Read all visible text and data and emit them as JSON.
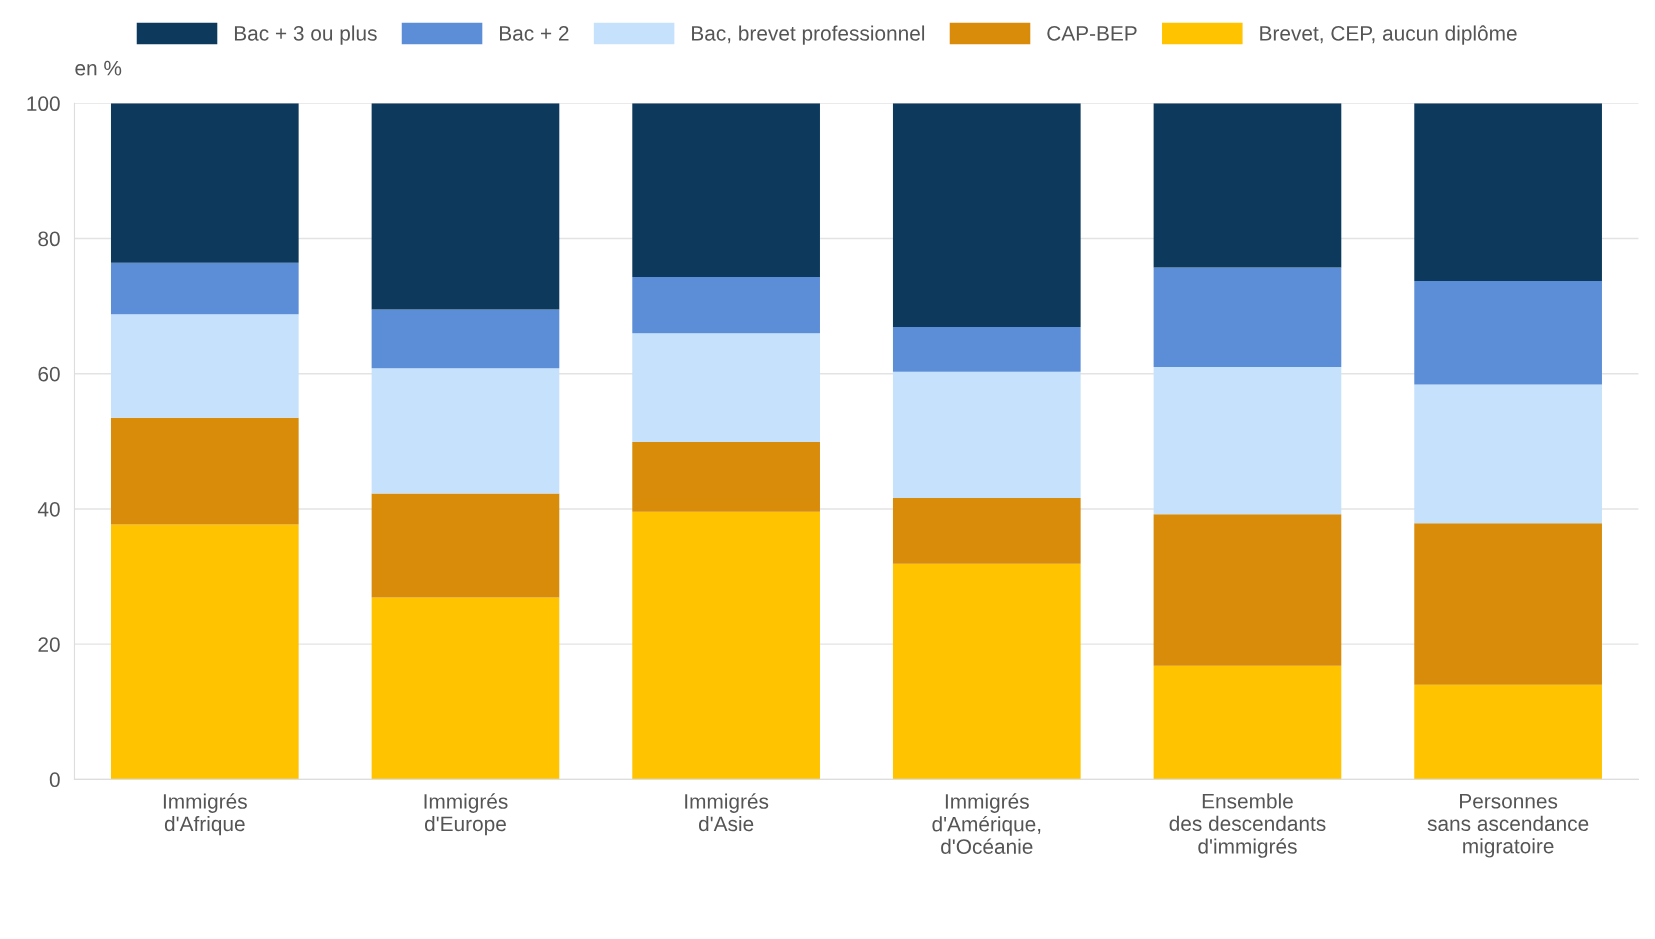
{
  "chart_data": {
    "type": "bar",
    "stacked": true,
    "ylabel": "en %",
    "categories": [
      "Immigrés\nd'Afrique",
      "Immigrés\nd'Europe",
      "Immigrés\nd'Asie",
      "Immigrés\nd'Amérique,\nd'Océanie",
      "Ensemble\ndes descendants\nd'immigrés",
      "Personnes\nsans ascendance\nmigratoire"
    ],
    "series": [
      {
        "name": "Brevet, CEP, aucun diplôme",
        "color": "#ffc300",
        "values": [
          37.7,
          26.9,
          39.6,
          31.9,
          16.8,
          14.0
        ]
      },
      {
        "name": "CAP-BEP",
        "color": "#d98b0a",
        "values": [
          15.8,
          15.4,
          10.3,
          9.7,
          22.4,
          23.9
        ]
      },
      {
        "name": "Bac, brevet professionnel",
        "color": "#c5e1fb",
        "values": [
          15.3,
          18.5,
          16.1,
          18.7,
          21.8,
          20.5
        ]
      },
      {
        "name": "Bac + 2",
        "color": "#5b8ed6",
        "values": [
          7.6,
          8.7,
          8.3,
          6.6,
          14.7,
          15.3
        ]
      },
      {
        "name": "Bac + 3 ou plus",
        "color": "#0d3a5c",
        "values": [
          23.6,
          30.5,
          25.7,
          33.1,
          24.3,
          26.3
        ]
      }
    ],
    "ylim": [
      0,
      100
    ],
    "yticks": [
      0,
      20,
      40,
      60,
      80,
      100
    ],
    "grid": "y",
    "legend": "top"
  }
}
